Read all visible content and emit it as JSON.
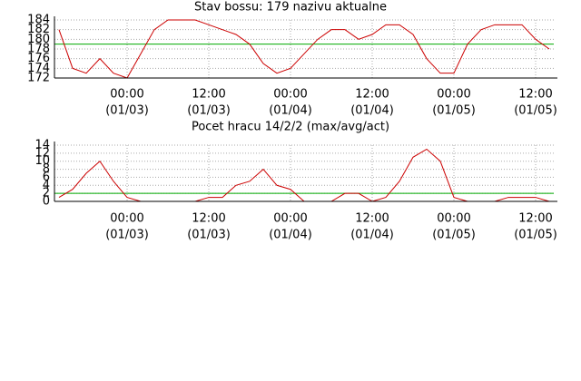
{
  "chart_data": [
    {
      "type": "line",
      "title": "Stav bossu: 179 nazivu aktualne",
      "color": "#cc0000",
      "x": [
        "01/02 14:00",
        "01/02 16:00",
        "01/02 18:00",
        "01/02 20:00",
        "01/02 22:00",
        "01/03 00:00",
        "01/03 02:00",
        "01/03 04:00",
        "01/03 06:00",
        "01/03 08:00",
        "01/03 10:00",
        "01/03 12:00",
        "01/03 14:00",
        "01/03 16:00",
        "01/03 18:00",
        "01/03 20:00",
        "01/03 22:00",
        "01/04 00:00",
        "01/04 02:00",
        "01/04 04:00",
        "01/04 06:00",
        "01/04 08:00",
        "01/04 10:00",
        "01/04 12:00",
        "01/04 14:00",
        "01/04 16:00",
        "01/04 18:00",
        "01/04 20:00",
        "01/04 22:00",
        "01/05 00:00",
        "01/05 02:00",
        "01/05 04:00",
        "01/05 06:00",
        "01/05 08:00",
        "01/05 10:00",
        "01/05 12:00",
        "01/05 14:00"
      ],
      "values": [
        182,
        174,
        173,
        176,
        173,
        172,
        177,
        182,
        184,
        184,
        184,
        183,
        182,
        181,
        179,
        175,
        173,
        174,
        177,
        180,
        182,
        182,
        180,
        181,
        183,
        183,
        181,
        176,
        173,
        173,
        179,
        182,
        183,
        183,
        183,
        180,
        178
      ],
      "reference_line": {
        "value": 179,
        "color": "#00aa00"
      },
      "xlim": [
        "01/02 13:20",
        "01/05 14:40"
      ],
      "xticks": [
        {
          "value": "01/03 00:00",
          "label": "00:00",
          "sublabel": "(01/03)"
        },
        {
          "value": "01/03 12:00",
          "label": "12:00",
          "sublabel": "(01/03)"
        },
        {
          "value": "01/04 00:00",
          "label": "00:00",
          "sublabel": "(01/04)"
        },
        {
          "value": "01/04 12:00",
          "label": "12:00",
          "sublabel": "(01/04)"
        },
        {
          "value": "01/05 00:00",
          "label": "00:00",
          "sublabel": "(01/05)"
        },
        {
          "value": "01/05 12:00",
          "label": "12:00",
          "sublabel": "(01/05)"
        }
      ],
      "ylim": [
        172,
        184
      ],
      "yticks": [
        172,
        174,
        176,
        178,
        180,
        182,
        184
      ],
      "grid": true
    },
    {
      "type": "line",
      "title": "Pocet hracu 14/2/2 (max/avg/act)",
      "color": "#cc0000",
      "x": [
        "01/02 14:00",
        "01/02 16:00",
        "01/02 18:00",
        "01/02 20:00",
        "01/02 22:00",
        "01/03 00:00",
        "01/03 02:00",
        "01/03 04:00",
        "01/03 06:00",
        "01/03 08:00",
        "01/03 10:00",
        "01/03 12:00",
        "01/03 14:00",
        "01/03 16:00",
        "01/03 18:00",
        "01/03 20:00",
        "01/03 22:00",
        "01/04 00:00",
        "01/04 02:00",
        "01/04 04:00",
        "01/04 06:00",
        "01/04 08:00",
        "01/04 10:00",
        "01/04 12:00",
        "01/04 14:00",
        "01/04 16:00",
        "01/04 18:00",
        "01/04 20:00",
        "01/04 22:00",
        "01/05 00:00",
        "01/05 02:00",
        "01/05 04:00",
        "01/05 06:00",
        "01/05 08:00",
        "01/05 10:00",
        "01/05 12:00",
        "01/05 14:00"
      ],
      "values": [
        1,
        3,
        7,
        10,
        5,
        1,
        0,
        0,
        0,
        0,
        0,
        1,
        1,
        4,
        5,
        8,
        4,
        3,
        0,
        0,
        0,
        2,
        2,
        0,
        1,
        5,
        11,
        13,
        10,
        1,
        0,
        0,
        0,
        1,
        1,
        1,
        0
      ],
      "reference_line": {
        "value": 2,
        "color": "#00aa00"
      },
      "xlim": [
        "01/02 13:20",
        "01/05 14:40"
      ],
      "xticks": [
        {
          "value": "01/03 00:00",
          "label": "00:00",
          "sublabel": "(01/03)"
        },
        {
          "value": "01/03 12:00",
          "label": "12:00",
          "sublabel": "(01/03)"
        },
        {
          "value": "01/04 00:00",
          "label": "00:00",
          "sublabel": "(01/04)"
        },
        {
          "value": "01/04 12:00",
          "label": "12:00",
          "sublabel": "(01/04)"
        },
        {
          "value": "01/05 00:00",
          "label": "00:00",
          "sublabel": "(01/05)"
        },
        {
          "value": "01/05 12:00",
          "label": "12:00",
          "sublabel": "(01/05)"
        }
      ],
      "ylim": [
        0,
        14
      ],
      "yticks": [
        0,
        2,
        4,
        6,
        8,
        10,
        12,
        14
      ],
      "grid": true
    }
  ]
}
